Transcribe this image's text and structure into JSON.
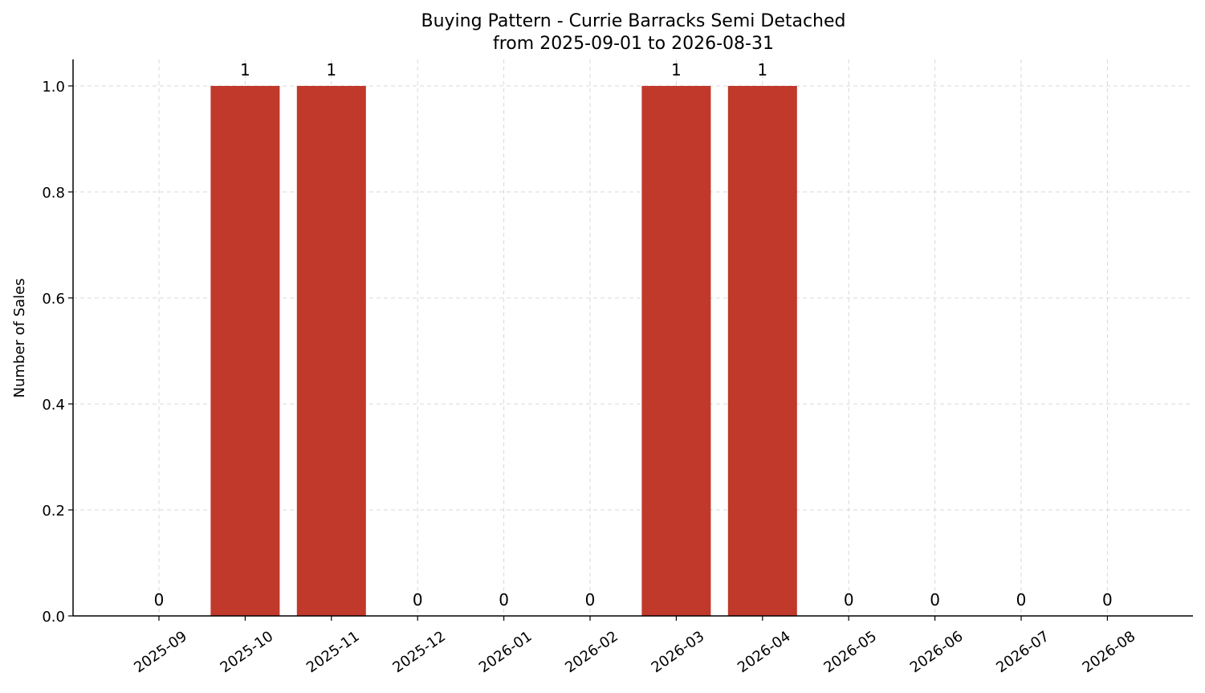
{
  "chart_data": {
    "type": "bar",
    "title": "Buying Pattern - Currie Barracks Semi Detached",
    "subtitle": "from 2025-09-01 to 2026-08-31",
    "xlabel": "",
    "ylabel": "Number of Sales",
    "categories": [
      "2025-09",
      "2025-10",
      "2025-11",
      "2025-12",
      "2026-01",
      "2026-02",
      "2026-03",
      "2026-04",
      "2026-05",
      "2026-06",
      "2026-07",
      "2026-08"
    ],
    "values": [
      0,
      1,
      1,
      0,
      0,
      0,
      1,
      1,
      0,
      0,
      0,
      0
    ],
    "data_labels": [
      "0",
      "1",
      "1",
      "0",
      "0",
      "0",
      "1",
      "1",
      "0",
      "0",
      "0",
      "0"
    ],
    "ylim": [
      0,
      1.05
    ],
    "yticks": [
      "0.0",
      "0.2",
      "0.4",
      "0.6",
      "0.8",
      "1.0"
    ],
    "ytick_values": [
      0,
      0.2,
      0.4,
      0.6,
      0.8,
      1.0
    ],
    "grid": true,
    "bar_color": "#c0392b"
  }
}
